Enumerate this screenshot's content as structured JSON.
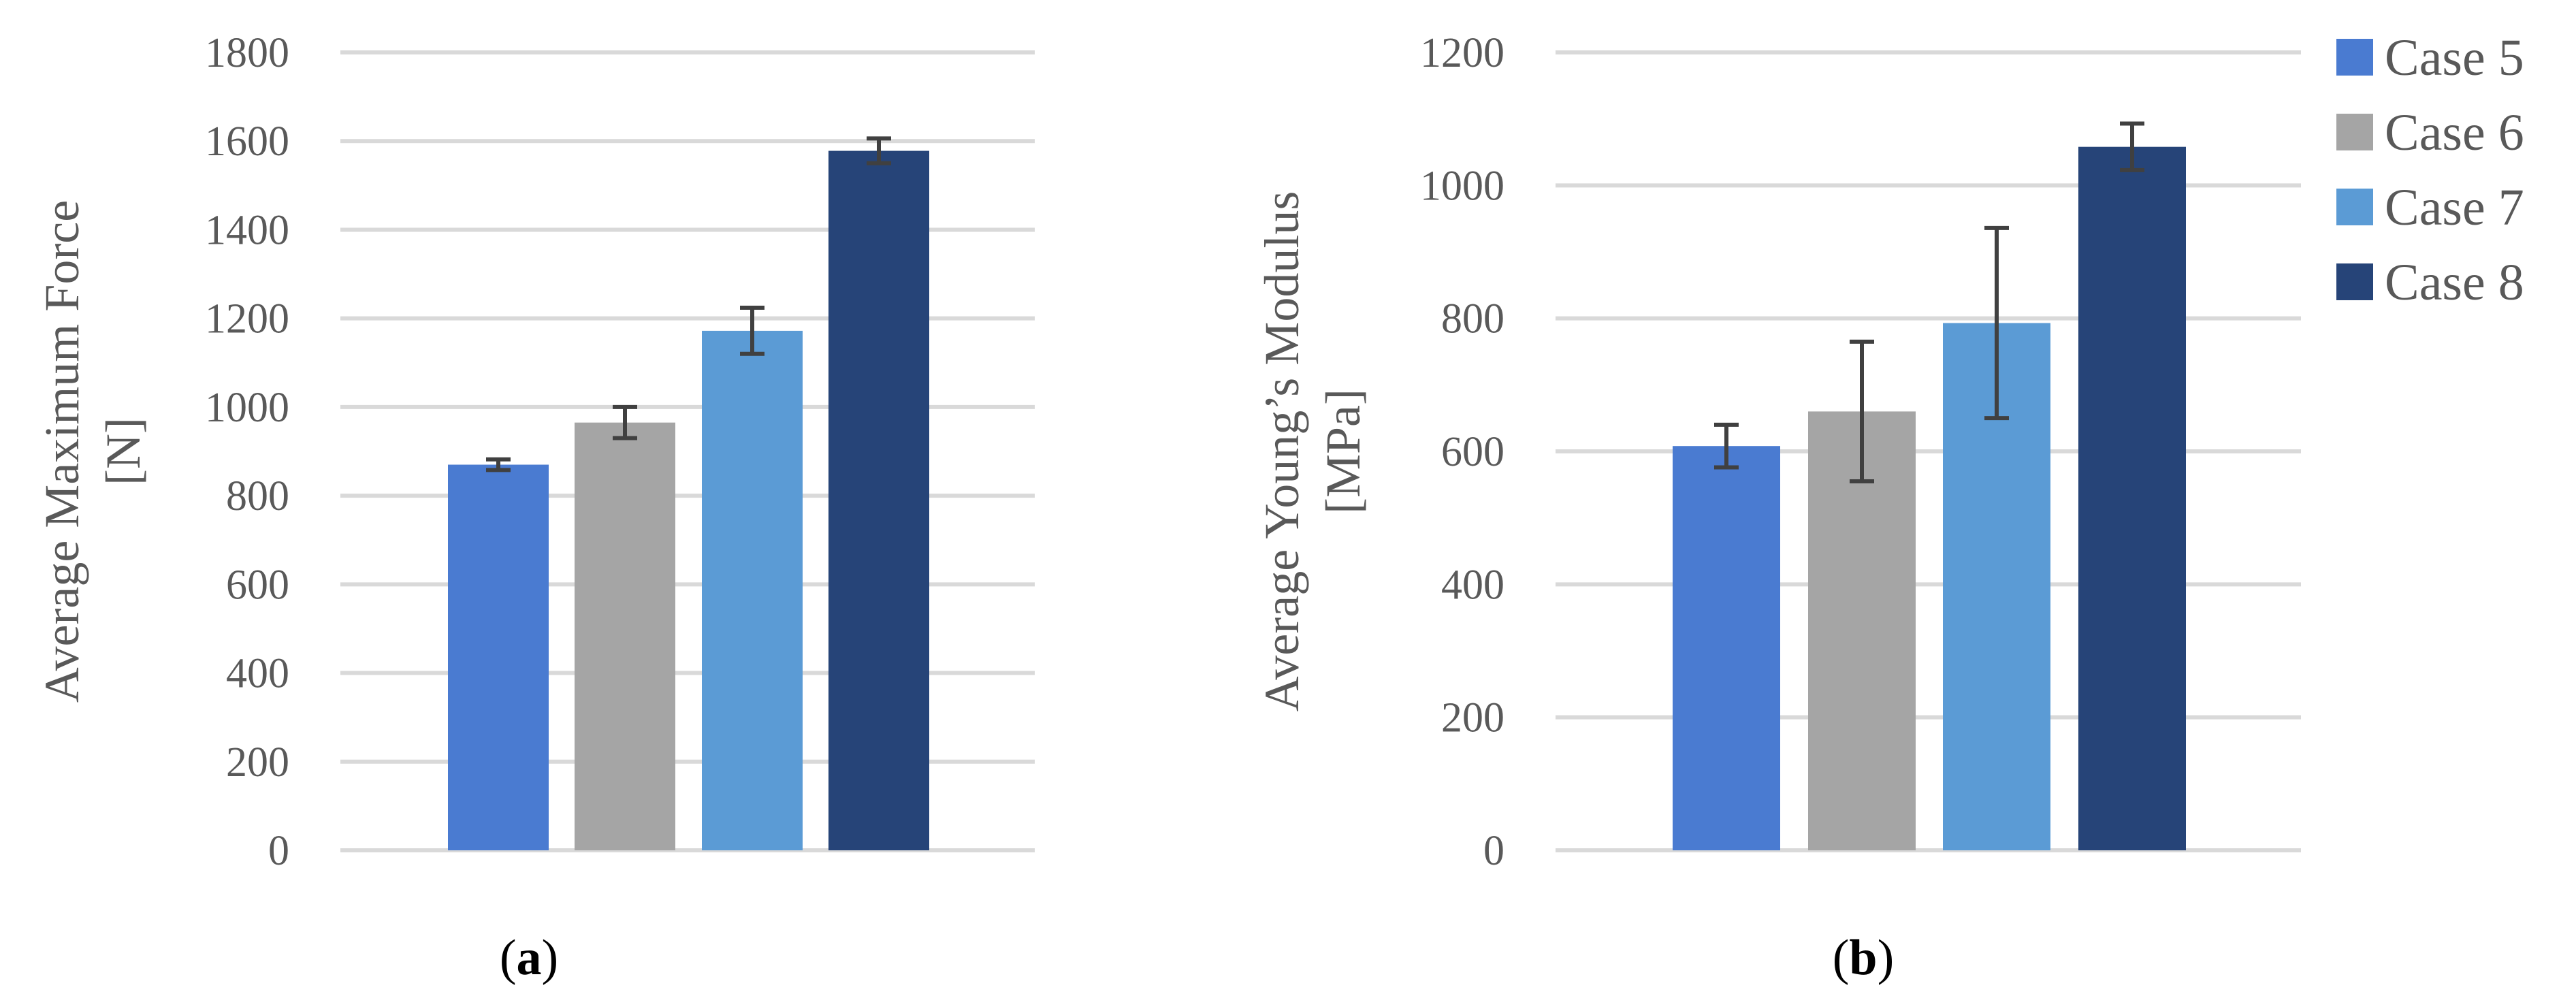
{
  "chart_data": [
    {
      "type": "bar",
      "panel_label": "a",
      "categories": [
        "Case 5",
        "Case 6",
        "Case 7",
        "Case 8"
      ],
      "values": [
        870,
        965,
        1172,
        1578
      ],
      "errors": [
        12,
        35,
        52,
        28
      ],
      "ylabel": [
        "Average Maximum Force",
        "[N]"
      ],
      "ylim": [
        0,
        1800
      ],
      "yticks": [
        "0",
        "200",
        "400",
        "600",
        "800",
        "1000",
        "1200",
        "1400",
        "1600",
        "1800"
      ],
      "grid": true
    },
    {
      "type": "bar",
      "panel_label": "b",
      "categories": [
        "Case 5",
        "Case 6",
        "Case 7",
        "Case 8"
      ],
      "values": [
        608,
        660,
        793,
        1058
      ],
      "errors": [
        32,
        105,
        143,
        35
      ],
      "ylabel": [
        "Average Young’s Modulus",
        "[MPa]"
      ],
      "ylim": [
        0,
        1200
      ],
      "yticks": [
        "0",
        "200",
        "400",
        "600",
        "800",
        "1000",
        "1200"
      ],
      "grid": true
    }
  ],
  "legend": {
    "placement": "right",
    "entries": [
      "Case 5",
      "Case 6",
      "Case 7",
      "Case 8"
    ]
  },
  "colors": {
    "Case 5": "#4a7bd1",
    "Case 6": "#a5a5a5",
    "Case 7": "#5b9bd5",
    "Case 8": "#264478"
  }
}
